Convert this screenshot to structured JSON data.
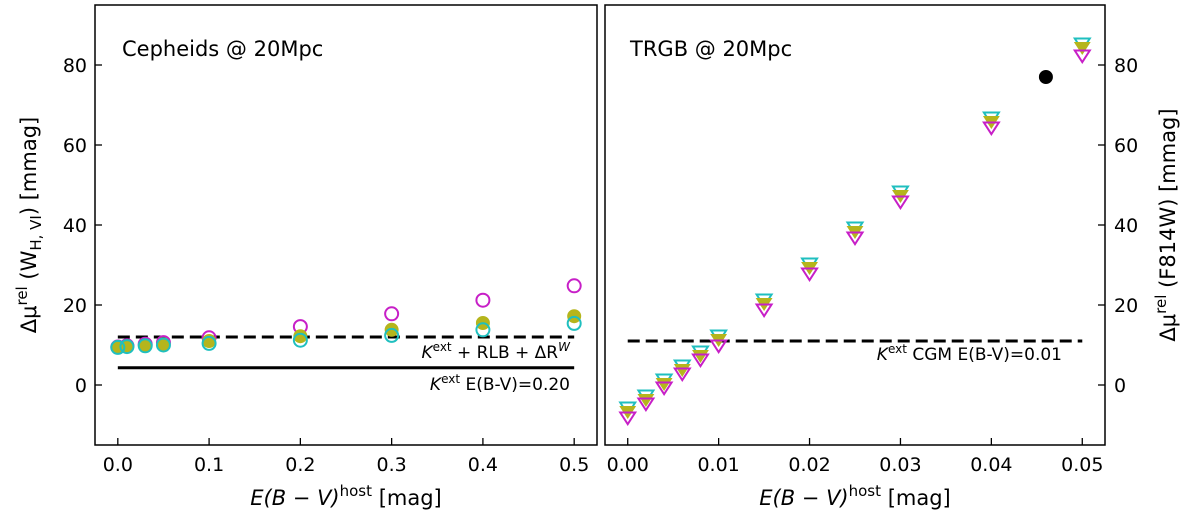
{
  "chart_data": [
    {
      "type": "scatter",
      "title": "Cepheids @ 20Mpc",
      "xlabel_main": "E(B − V)",
      "xlabel_sup": "host",
      "xlabel_unit": " [mag]",
      "ylabel_main": "Δμ",
      "ylabel_sup": "rel",
      "ylabel_mid": " (W",
      "ylabel_sub": "H, VI",
      "ylabel_unit": ") [mmag]",
      "xlim": [
        -0.025,
        0.525
      ],
      "ylim": [
        -15,
        95
      ],
      "xticks": [
        0.0,
        0.1,
        0.2,
        0.3,
        0.4,
        0.5
      ],
      "xtick_labels": [
        "0.0",
        "0.1",
        "0.2",
        "0.3",
        "0.4",
        "0.5"
      ],
      "yticks": [
        0,
        20,
        40,
        60,
        80
      ],
      "ytick_labels": [
        "0",
        "20",
        "40",
        "60",
        "80"
      ],
      "series": [
        {
          "name": "magenta-open-circle",
          "color": "#c71fc7",
          "marker": "circle-open",
          "x": [
            0.0,
            0.01,
            0.03,
            0.05,
            0.1,
            0.2,
            0.3,
            0.4,
            0.5
          ],
          "y": [
            9.5,
            9.8,
            10.2,
            10.6,
            11.8,
            14.6,
            17.8,
            21.2,
            24.8
          ]
        },
        {
          "name": "olive-filled-circle",
          "color": "#b5b51c",
          "marker": "circle-filled",
          "x": [
            0.0,
            0.01,
            0.03,
            0.05,
            0.1,
            0.2,
            0.3,
            0.4,
            0.5
          ],
          "y": [
            9.5,
            9.7,
            9.9,
            10.2,
            11.0,
            12.2,
            13.8,
            15.5,
            17.2
          ]
        },
        {
          "name": "cyan-open-circle",
          "color": "#1fbfbf",
          "marker": "circle-open",
          "x": [
            0.0,
            0.01,
            0.03,
            0.05,
            0.1,
            0.2,
            0.3,
            0.4,
            0.5
          ],
          "y": [
            9.4,
            9.6,
            9.8,
            10.0,
            10.4,
            11.2,
            12.4,
            13.8,
            15.4
          ]
        }
      ],
      "hlines": [
        {
          "y": 12.0,
          "style": "dashed",
          "x0": 0.0,
          "x1": 0.5
        },
        {
          "y": 4.3,
          "style": "solid",
          "x0": 0.0,
          "x1": 0.5
        }
      ],
      "annotations": {
        "dashed_label": {
          "k": "K",
          "sup": "ext",
          "text": " + RLB + ΔR",
          "sup2": "W"
        },
        "solid_label": {
          "k": "K",
          "sup": "ext",
          "text": " E(B-V)=0.20"
        }
      }
    },
    {
      "type": "scatter",
      "title": "TRGB @ 20Mpc",
      "xlabel_main": "E(B − V)",
      "xlabel_sup": "host",
      "xlabel_unit": " [mag]",
      "ylabel_main": "Δμ",
      "ylabel_sup": "rel",
      "ylabel_unit": " (F814W) [mmag]",
      "xlim": [
        -0.0025,
        0.0525
      ],
      "ylim": [
        -15,
        95
      ],
      "xticks": [
        0.0,
        0.01,
        0.02,
        0.03,
        0.04,
        0.05
      ],
      "xtick_labels": [
        "0.00",
        "0.01",
        "0.02",
        "0.03",
        "0.04",
        "0.05"
      ],
      "yticks": [
        0,
        20,
        40,
        60,
        80
      ],
      "ytick_labels": [
        "0",
        "20",
        "40",
        "60",
        "80"
      ],
      "series": [
        {
          "name": "cyan-open-triangle",
          "color": "#1fbfbf",
          "marker": "triangle-open",
          "x": [
            0.0,
            0.002,
            0.004,
            0.006,
            0.008,
            0.01,
            0.015,
            0.02,
            0.025,
            0.03,
            0.04,
            0.05
          ],
          "y": [
            -5.5,
            -2.5,
            1.5,
            5.0,
            8.5,
            12.5,
            21.5,
            30.5,
            39.5,
            48.5,
            67.0,
            85.5
          ]
        },
        {
          "name": "olive-filled-triangle",
          "color": "#b5b51c",
          "marker": "triangle-filled",
          "x": [
            0.0,
            0.002,
            0.004,
            0.006,
            0.008,
            0.01,
            0.015,
            0.02,
            0.025,
            0.03,
            0.04,
            0.05
          ],
          "y": [
            -6.5,
            -3.5,
            0.5,
            4.0,
            7.5,
            11.5,
            20.5,
            29.5,
            38.5,
            47.5,
            66.0,
            84.5
          ]
        },
        {
          "name": "magenta-open-triangle",
          "color": "#c71fc7",
          "marker": "triangle-open",
          "x": [
            0.0,
            0.002,
            0.004,
            0.006,
            0.008,
            0.01,
            0.015,
            0.02,
            0.025,
            0.03,
            0.04,
            0.05
          ],
          "y": [
            -8.0,
            -4.5,
            -0.5,
            3.0,
            6.5,
            10.0,
            19.0,
            28.0,
            37.0,
            46.0,
            64.5,
            82.5
          ]
        },
        {
          "name": "black-filled-circle",
          "color": "#000000",
          "marker": "circle-filled",
          "x": [
            0.046
          ],
          "y": [
            77.0
          ]
        }
      ],
      "hlines": [
        {
          "y": 11.0,
          "style": "dashed",
          "x0": 0.0,
          "x1": 0.05
        }
      ],
      "annotations": {
        "dashed_label": {
          "k": "K",
          "sup": "ext",
          "text": " CGM E(B-V)=0.01"
        }
      }
    }
  ]
}
